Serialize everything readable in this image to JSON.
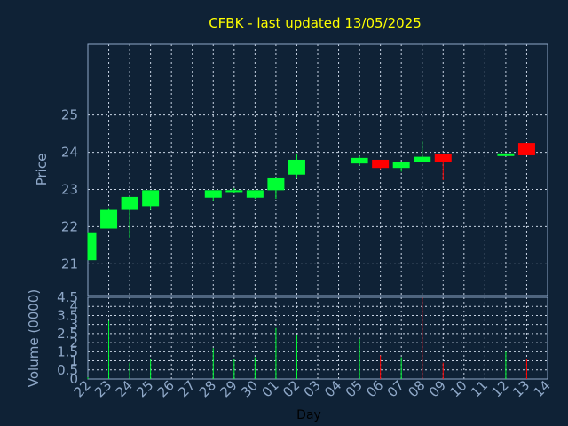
{
  "chart_data": [
    {
      "type": "candlestick",
      "title": "CFBK - last updated 13/05/2025",
      "ylabel": "Price",
      "ylim": [
        20.15,
        26.9
      ],
      "yticks": [
        21,
        22,
        23,
        24,
        25
      ],
      "grid": true,
      "colors": {
        "up": "#00ff33",
        "down": "#ff0000",
        "grid": "#c8d4e4",
        "text": "#8fa8c8",
        "title": "#ffff00",
        "background": "#0f2236"
      },
      "candles": [
        {
          "day": "22",
          "open": 21.1,
          "high": 21.85,
          "low": 21.1,
          "close": 21.85
        },
        {
          "day": "23",
          "open": 21.95,
          "high": 22.5,
          "low": 21.95,
          "close": 22.45
        },
        {
          "day": "24",
          "open": 22.45,
          "high": 22.8,
          "low": 21.7,
          "close": 22.8
        },
        {
          "day": "25",
          "open": 22.55,
          "high": 22.98,
          "low": 22.45,
          "close": 22.98
        },
        {
          "day": "28",
          "open": 22.78,
          "high": 22.98,
          "low": 22.7,
          "close": 22.98
        },
        {
          "day": "29",
          "open": 22.93,
          "high": 23.03,
          "low": 22.9,
          "close": 22.98
        },
        {
          "day": "30",
          "open": 22.78,
          "high": 22.98,
          "low": 22.75,
          "close": 22.98
        },
        {
          "day": "01",
          "open": 22.98,
          "high": 23.3,
          "low": 22.75,
          "close": 23.3
        },
        {
          "day": "02",
          "open": 23.4,
          "high": 23.95,
          "low": 23.3,
          "close": 23.8
        },
        {
          "day": "05",
          "open": 23.7,
          "high": 23.9,
          "low": 23.65,
          "close": 23.85
        },
        {
          "day": "06",
          "open": 23.8,
          "high": 23.8,
          "low": 23.55,
          "close": 23.58
        },
        {
          "day": "07",
          "open": 23.58,
          "high": 23.75,
          "low": 23.48,
          "close": 23.75
        },
        {
          "day": "08",
          "open": 23.75,
          "high": 24.3,
          "low": 23.75,
          "close": 23.88
        },
        {
          "day": "09",
          "open": 23.95,
          "high": 23.95,
          "low": 23.25,
          "close": 23.75
        },
        {
          "day": "12",
          "open": 23.9,
          "high": 23.97,
          "low": 23.9,
          "close": 23.97
        },
        {
          "day": "13",
          "open": 24.25,
          "high": 24.25,
          "low": 23.92,
          "close": 23.92
        }
      ]
    },
    {
      "type": "bar",
      "ylabel": "Volume (0000)",
      "xlabel": "Day",
      "ylim": [
        0,
        4.5
      ],
      "yticks": [
        "0",
        "0.5",
        "1",
        "1.5",
        "2",
        "2.5",
        "3",
        "3.5",
        "4",
        "4.5"
      ],
      "categories": [
        "22",
        "23",
        "24",
        "25",
        "26",
        "27",
        "28",
        "29",
        "30",
        "01",
        "02",
        "03",
        "04",
        "05",
        "06",
        "07",
        "08",
        "09",
        "10",
        "11",
        "12",
        "13",
        "14"
      ],
      "values": [
        0.1,
        3.2,
        0.9,
        1.1,
        0,
        0,
        1.7,
        1.1,
        1.2,
        2.8,
        2.4,
        0,
        0,
        2.2,
        1.3,
        1.2,
        4.5,
        0.9,
        0,
        0,
        1.5,
        1.1,
        0
      ],
      "bar_colors": [
        "up",
        "up",
        "up",
        "up",
        "up",
        "up",
        "up",
        "up",
        "up",
        "up",
        "up",
        "up",
        "up",
        "up",
        "down",
        "up",
        "down",
        "down",
        "up",
        "up",
        "up",
        "down",
        "up"
      ]
    }
  ]
}
